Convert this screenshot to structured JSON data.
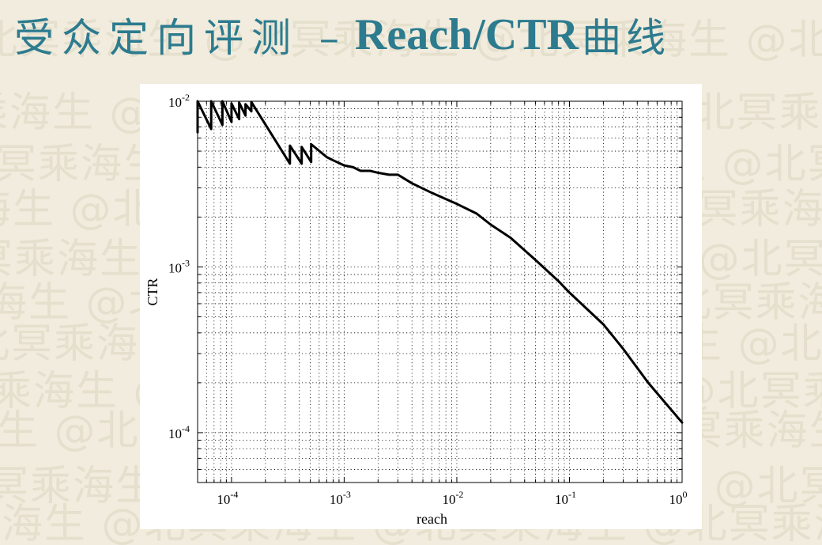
{
  "slide": {
    "title_cn": "受众定向评测 –",
    "title_en": "Reach/CTR",
    "title_cn2": "曲线",
    "watermark_text": "北冥乘海生 @北冥乘海生 @北冥乘海生 @北冥乘海生"
  },
  "chart_data": {
    "type": "line",
    "xlabel": "reach",
    "ylabel": "CTR",
    "xscale": "log",
    "yscale": "log",
    "xlim": [
      5e-05,
      1
    ],
    "ylim": [
      5e-05,
      0.01
    ],
    "grid": true,
    "x_ticks": [
      {
        "value": 0.0001,
        "base": "10",
        "exp": "-4"
      },
      {
        "value": 0.001,
        "base": "10",
        "exp": "-3"
      },
      {
        "value": 0.01,
        "base": "10",
        "exp": "-2"
      },
      {
        "value": 0.1,
        "base": "10",
        "exp": "-1"
      },
      {
        "value": 1,
        "base": "10",
        "exp": "0"
      }
    ],
    "y_ticks": [
      {
        "value": 0.0001,
        "base": "10",
        "exp": "-4"
      },
      {
        "value": 0.001,
        "base": "10",
        "exp": "-3"
      },
      {
        "value": 0.01,
        "base": "10",
        "exp": "-2"
      }
    ],
    "series": [
      {
        "color": "#000000",
        "x": [
          5e-05,
          5e-05,
          6.6e-05,
          6.6e-05,
          8.3e-05,
          8.3e-05,
          0.0001,
          0.0001,
          0.000117,
          0.000117,
          0.000133,
          0.000133,
          0.00015,
          0.00015,
          0.00033,
          0.00033,
          0.00042,
          0.00042,
          0.00051,
          0.00051,
          0.0007,
          0.0008,
          0.001,
          0.0012,
          0.0014,
          0.0017,
          0.002,
          0.0025,
          0.003,
          0.004,
          0.006,
          0.01,
          0.015,
          0.02,
          0.03,
          0.05,
          0.08,
          0.1,
          0.2,
          0.3,
          0.5,
          1.0
        ],
        "y": [
          0.0065,
          0.01,
          0.0068,
          0.01,
          0.0072,
          0.01,
          0.0075,
          0.0097,
          0.0078,
          0.0098,
          0.0082,
          0.0096,
          0.0087,
          0.0099,
          0.0042,
          0.0054,
          0.0042,
          0.0053,
          0.0043,
          0.0055,
          0.0046,
          0.0044,
          0.0041,
          0.004,
          0.0038,
          0.0038,
          0.0037,
          0.0036,
          0.0036,
          0.0032,
          0.0028,
          0.0024,
          0.0021,
          0.0018,
          0.0015,
          0.0011,
          0.00082,
          0.0007,
          0.00045,
          0.00032,
          0.0002,
          0.000115
        ]
      }
    ]
  }
}
